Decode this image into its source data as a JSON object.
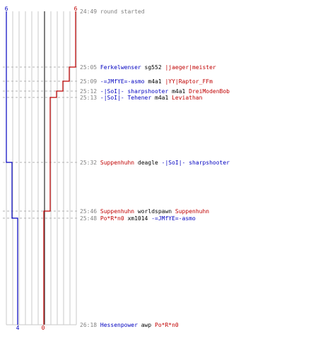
{
  "colors": {
    "team_a": "#0000c0",
    "team_b": "#c00000",
    "time": "#808080",
    "text": "#000000",
    "grid": "#c8c8c8",
    "axis": "#555555"
  },
  "teams": {
    "blue": {
      "start_score": "6",
      "end_score": "4"
    },
    "red": {
      "start_score": "6",
      "end_score": "0"
    }
  },
  "events": [
    {
      "time": "24:49",
      "text": "round started"
    },
    {
      "time": "25:05",
      "killer": "Ferkelwenser",
      "weapon": "sg552",
      "victim": "|jaeger|meister"
    },
    {
      "time": "25:09",
      "killer": "-=JMfYE=-asmo",
      "weapon": "m4a1",
      "victim": "|YY|Raptor_FFm"
    },
    {
      "time": "25:12",
      "killer": "-|SoI|- sharpshooter",
      "weapon": "m4a1",
      "victim": "DreiModenBob"
    },
    {
      "time": "25:13",
      "killer": "-|SoI|- Tehener",
      "weapon": "m4a1",
      "victim": "Leviathan"
    },
    {
      "time": "25:32",
      "killer": "Suppenhuhn",
      "weapon": "deagle",
      "victim": "-|SoI|- sharpshooter"
    },
    {
      "time": "25:46",
      "killer": "Suppenhuhn",
      "weapon": "worldspawn",
      "victim": "Suppenhuhn"
    },
    {
      "time": "25:48",
      "killer": "Po*R*n0",
      "weapon": "xm1014",
      "victim": "-=JMfYE=-asmo"
    },
    {
      "time": "26:18",
      "killer": "Hessenpower",
      "weapon": "awp",
      "victim": "Po*R*n0"
    }
  ]
}
